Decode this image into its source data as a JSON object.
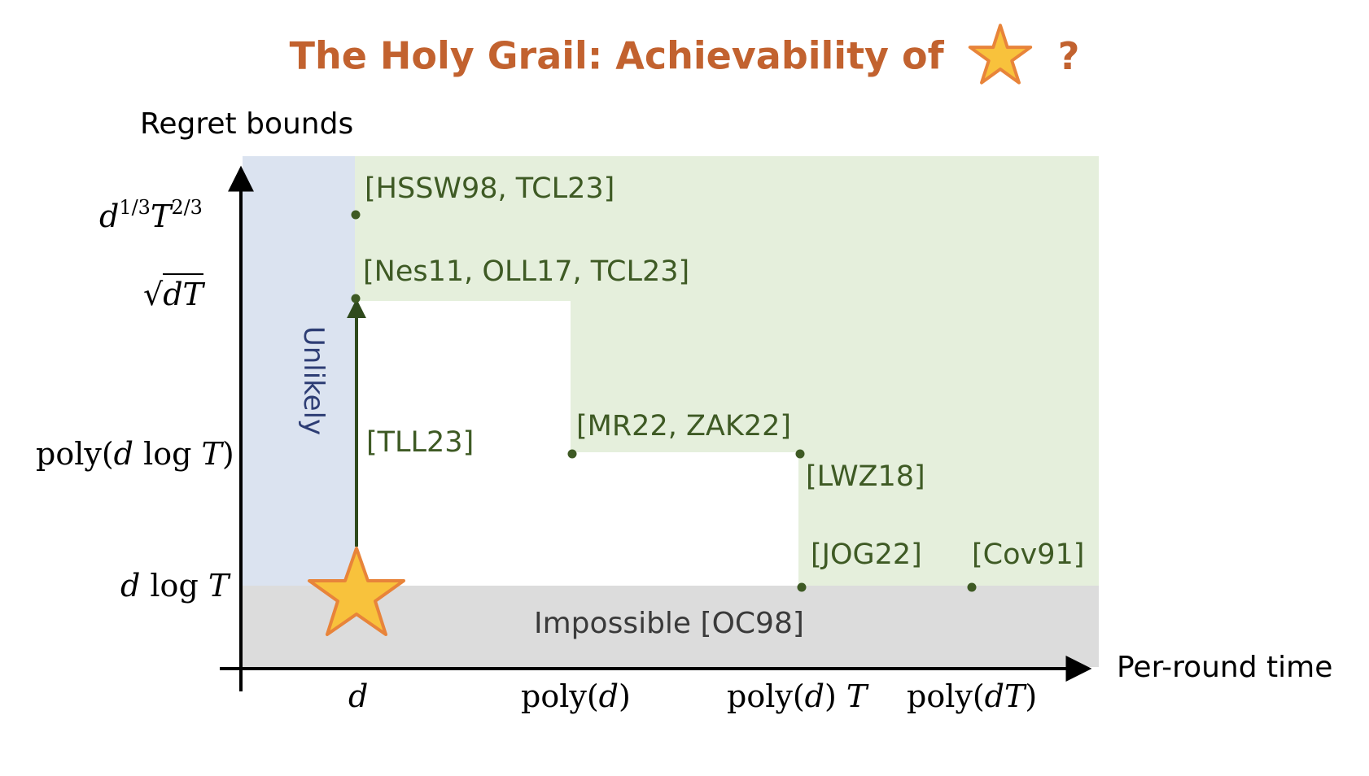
{
  "title": {
    "text": "The Holy Grail: Achievability of",
    "suffix": "?",
    "star_icon": "star-icon"
  },
  "axes": {
    "y_label": "Regret bounds",
    "x_label": "Per-round time"
  },
  "y_ticks": {
    "t1": "d^{1/3} T^{2/3}",
    "t2": "√(dT)",
    "t3": "poly(d log T)",
    "t4": "d log T"
  },
  "x_ticks": {
    "t1": "d",
    "t2": "poly(d)",
    "t3": "poly(d) T",
    "t4": "poly(dT)"
  },
  "regions": {
    "impossible": "Impossible [OC98]",
    "unlikely": "Unlikely"
  },
  "references": {
    "hssw": "[HSSW98, TCL23]",
    "nes": "[Nes11, OLL17, TCL23]",
    "tll": "[TLL23]",
    "mr": "[MR22, ZAK22]",
    "lwz": "[LWZ18]",
    "jog": "[JOG22]",
    "cov": "[Cov91]"
  },
  "colors": {
    "title": "#c2622f",
    "green_region": "#e5efdc",
    "blue_region": "#dbe3f0",
    "gray_region": "#dcdcdc",
    "points": "#3e5a24",
    "star_fill": "#f8c23c",
    "star_stroke": "#e8843a"
  }
}
